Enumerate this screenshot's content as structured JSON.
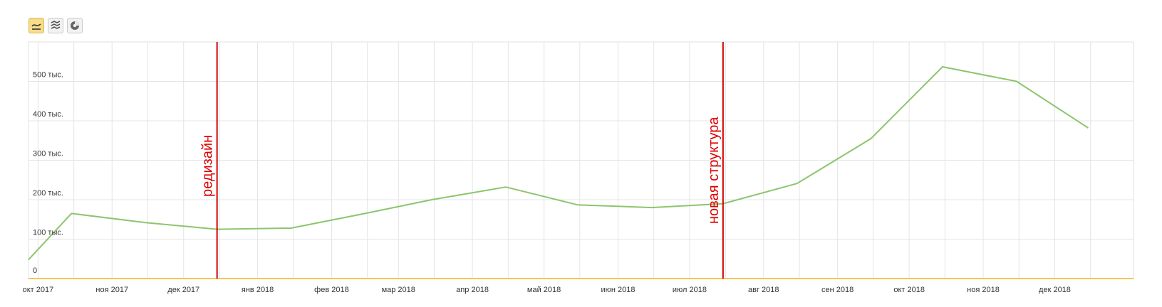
{
  "toolbar": {
    "buttons": [
      {
        "icon": "line-chart-icon",
        "active": true
      },
      {
        "icon": "area-chart-icon",
        "active": false
      },
      {
        "icon": "pie-chart-icon",
        "active": false
      }
    ]
  },
  "colors": {
    "series": "#8cc56d",
    "grid": "#e4e4e4",
    "event_line": "#d40000",
    "event_text": "#e00000",
    "baseline": "#f0c85a"
  },
  "chart_data": {
    "type": "line",
    "title": "",
    "xlabel": "",
    "ylabel": "",
    "grid": true,
    "ylim": [
      0,
      600000
    ],
    "y_ticks": [
      {
        "value": 0,
        "label": "0"
      },
      {
        "value": 100000,
        "label": "100 тыс."
      },
      {
        "value": 200000,
        "label": "200 тыс."
      },
      {
        "value": 300000,
        "label": "300 тыс."
      },
      {
        "value": 400000,
        "label": "400 тыс."
      },
      {
        "value": 500000,
        "label": "500 тыс."
      }
    ],
    "x_tick_labels": [
      "окт 2017",
      "ноя 2017",
      "дек 2017",
      "янв 2018",
      "фев 2018",
      "мар 2018",
      "апр 2018",
      "май 2018",
      "июн 2018",
      "июл 2018",
      "авг 2018",
      "сен 2018",
      "окт 2018",
      "ноя 2018",
      "дек 2018"
    ],
    "series": [
      {
        "points": [
          {
            "x": "2017-09-27",
            "y": 48000
          },
          {
            "x": "2017-10-15",
            "y": 165000
          },
          {
            "x": "2017-11-15",
            "y": 142000
          },
          {
            "x": "2017-12-15",
            "y": 125000
          },
          {
            "x": "2018-01-15",
            "y": 128000
          },
          {
            "x": "2018-02-15",
            "y": 165000
          },
          {
            "x": "2018-03-15",
            "y": 200000
          },
          {
            "x": "2018-04-15",
            "y": 232000
          },
          {
            "x": "2018-05-15",
            "y": 187000
          },
          {
            "x": "2018-06-15",
            "y": 180000
          },
          {
            "x": "2018-07-15",
            "y": 190000
          },
          {
            "x": "2018-08-15",
            "y": 241000
          },
          {
            "x": "2018-09-15",
            "y": 355000
          },
          {
            "x": "2018-10-15",
            "y": 537000
          },
          {
            "x": "2018-11-15",
            "y": 500000
          },
          {
            "x": "2018-12-15",
            "y": 382000
          }
        ]
      }
    ],
    "events": [
      {
        "x": "2017-12-15",
        "label": "редизайн"
      },
      {
        "x": "2018-07-15",
        "label": "новая структура"
      }
    ]
  }
}
